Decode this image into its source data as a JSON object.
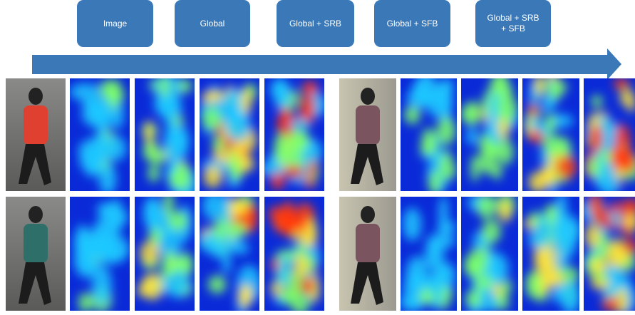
{
  "steps": [
    "Image",
    "Global",
    "Global + SRB",
    "Global + SFB",
    "Global + SRB + SFB"
  ]
}
